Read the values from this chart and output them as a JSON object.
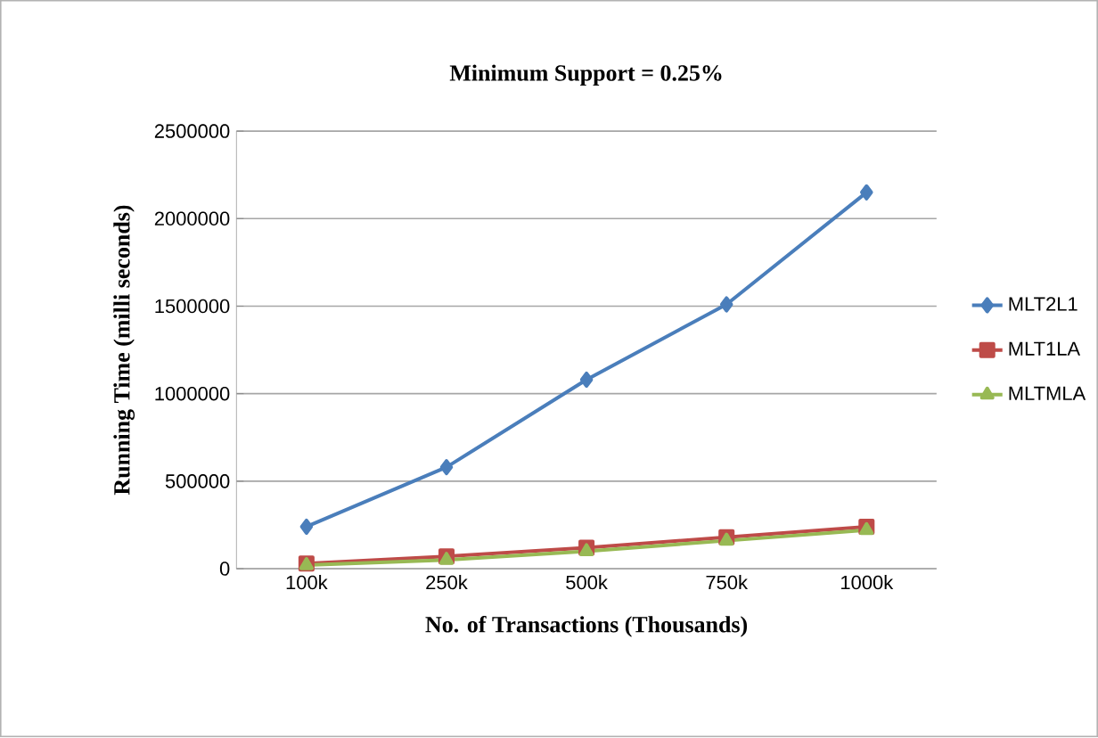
{
  "chart_data": {
    "type": "line",
    "title": "Minimum Support = 0.25%",
    "xlabel": "No. of Transactions (Thousands)",
    "ylabel": "Running Time (milli seconds)",
    "categories": [
      "100k",
      "250k",
      "500k",
      "750k",
      "1000k"
    ],
    "series": [
      {
        "name": "MLT2L1",
        "color": "#4a7ebb",
        "marker": "diamond",
        "values": [
          240000,
          580000,
          1080000,
          1510000,
          2150000
        ]
      },
      {
        "name": "MLT1LA",
        "color": "#be4b48",
        "marker": "square",
        "values": [
          30000,
          70000,
          120000,
          180000,
          240000
        ]
      },
      {
        "name": "MLTMLA",
        "color": "#98b954",
        "marker": "triangle",
        "values": [
          20000,
          50000,
          100000,
          160000,
          220000
        ]
      }
    ],
    "ylim": [
      0,
      2500000
    ],
    "yticks": [
      0,
      500000,
      1000000,
      1500000,
      2000000,
      2500000
    ],
    "grid": "y",
    "legend": "right"
  }
}
